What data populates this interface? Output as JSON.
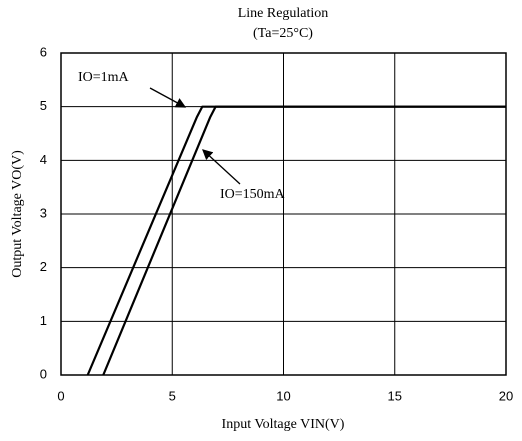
{
  "chart_data": {
    "type": "line",
    "title": "Line Regulation",
    "subtitle": "(Ta=25°C)",
    "x_label": "Input Voltage VIN(V)",
    "y_label": "Output Voltage VO(V)",
    "series": [
      {
        "name": "IO=1mA",
        "color": "#000000",
        "x": [
          1.2,
          6.1,
          6.35,
          20
        ],
        "values": [
          0,
          4.8,
          5,
          5
        ]
      },
      {
        "name": "IO=150mA",
        "color": "#000000",
        "x": [
          1.9,
          6.7,
          6.95,
          20
        ],
        "values": [
          0,
          4.8,
          5,
          5
        ]
      }
    ],
    "xlim": [
      0,
      20
    ],
    "xticks": [
      0,
      5,
      10,
      15,
      20
    ],
    "ylim": [
      0,
      6
    ],
    "yticks": [
      0,
      1,
      2,
      3,
      4,
      5,
      6
    ],
    "grid": true
  }
}
